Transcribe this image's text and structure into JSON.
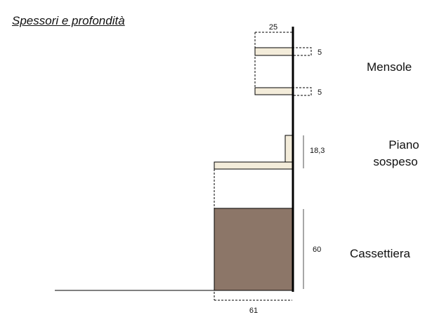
{
  "title": "Spessori e profondità",
  "labels": {
    "mensole": "Mensole",
    "piano_line1": "Piano",
    "piano_line2": "sospeso",
    "cassettiera": "Cassettiera"
  },
  "dimensions": {
    "shelf_depth": "25",
    "shelf_top_thickness": "5",
    "shelf_bottom_thickness": "5",
    "piano_height": "18,3",
    "cassettiera_height": "60",
    "cassettiera_depth": "61"
  },
  "colors": {
    "shelf_fill": "#f3ecda",
    "cassettiera_fill": "#8c7668",
    "wall": "#000000",
    "measure_bar": "#8a8a8a"
  }
}
